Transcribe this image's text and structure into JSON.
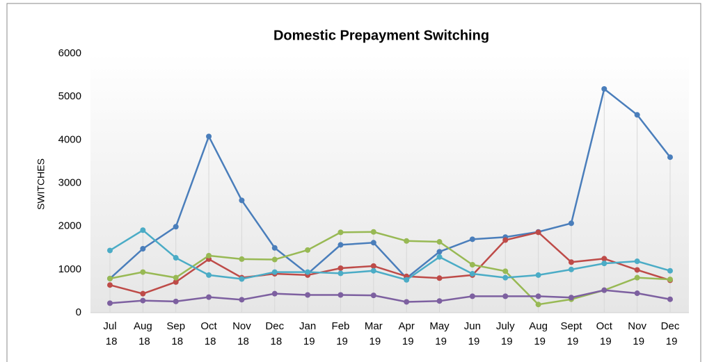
{
  "chart_data": {
    "type": "line",
    "title": "Domestic Prepayment Switching",
    "y_label": "SWITCHES",
    "categories": [
      "Jul 18",
      "Aug 18",
      "Sep 18",
      "Oct 18",
      "Nov 18",
      "Dec 18",
      "Jan 19",
      "Feb 19",
      "Mar 19",
      "Apr 19",
      "May 19",
      "Jun 19",
      "July 19",
      "Aug 19",
      "Sept 19",
      "Oct 19",
      "Nov 19",
      "Dec 19"
    ],
    "series": [
      {
        "color": "#4a7ebb",
        "values": [
          790,
          1480,
          1990,
          4080,
          2600,
          1500,
          900,
          1570,
          1620,
          800,
          1410,
          1700,
          1750,
          1870,
          2070,
          5180,
          4580,
          3600
        ]
      },
      {
        "color": "#be4b48",
        "values": [
          640,
          440,
          710,
          1240,
          810,
          900,
          870,
          1030,
          1080,
          840,
          800,
          870,
          1680,
          1860,
          1170,
          1250,
          990,
          750
        ]
      },
      {
        "color": "#98b954",
        "values": [
          790,
          940,
          810,
          1320,
          1240,
          1230,
          1450,
          1860,
          1870,
          1660,
          1640,
          1110,
          960,
          190,
          310,
          520,
          810,
          770
        ]
      },
      {
        "color": "#4bacc6",
        "values": [
          1440,
          1910,
          1270,
          870,
          780,
          940,
          940,
          910,
          970,
          760,
          1290,
          900,
          810,
          870,
          1000,
          1140,
          1190,
          970
        ]
      },
      {
        "color": "#7d60a0",
        "values": [
          220,
          280,
          260,
          360,
          300,
          440,
          410,
          410,
          400,
          250,
          270,
          380,
          380,
          380,
          350,
          520,
          450,
          310
        ]
      }
    ],
    "ylim": [
      0,
      6000
    ],
    "yticks": [
      0,
      1000,
      2000,
      3000,
      4000,
      5000,
      6000
    ]
  }
}
